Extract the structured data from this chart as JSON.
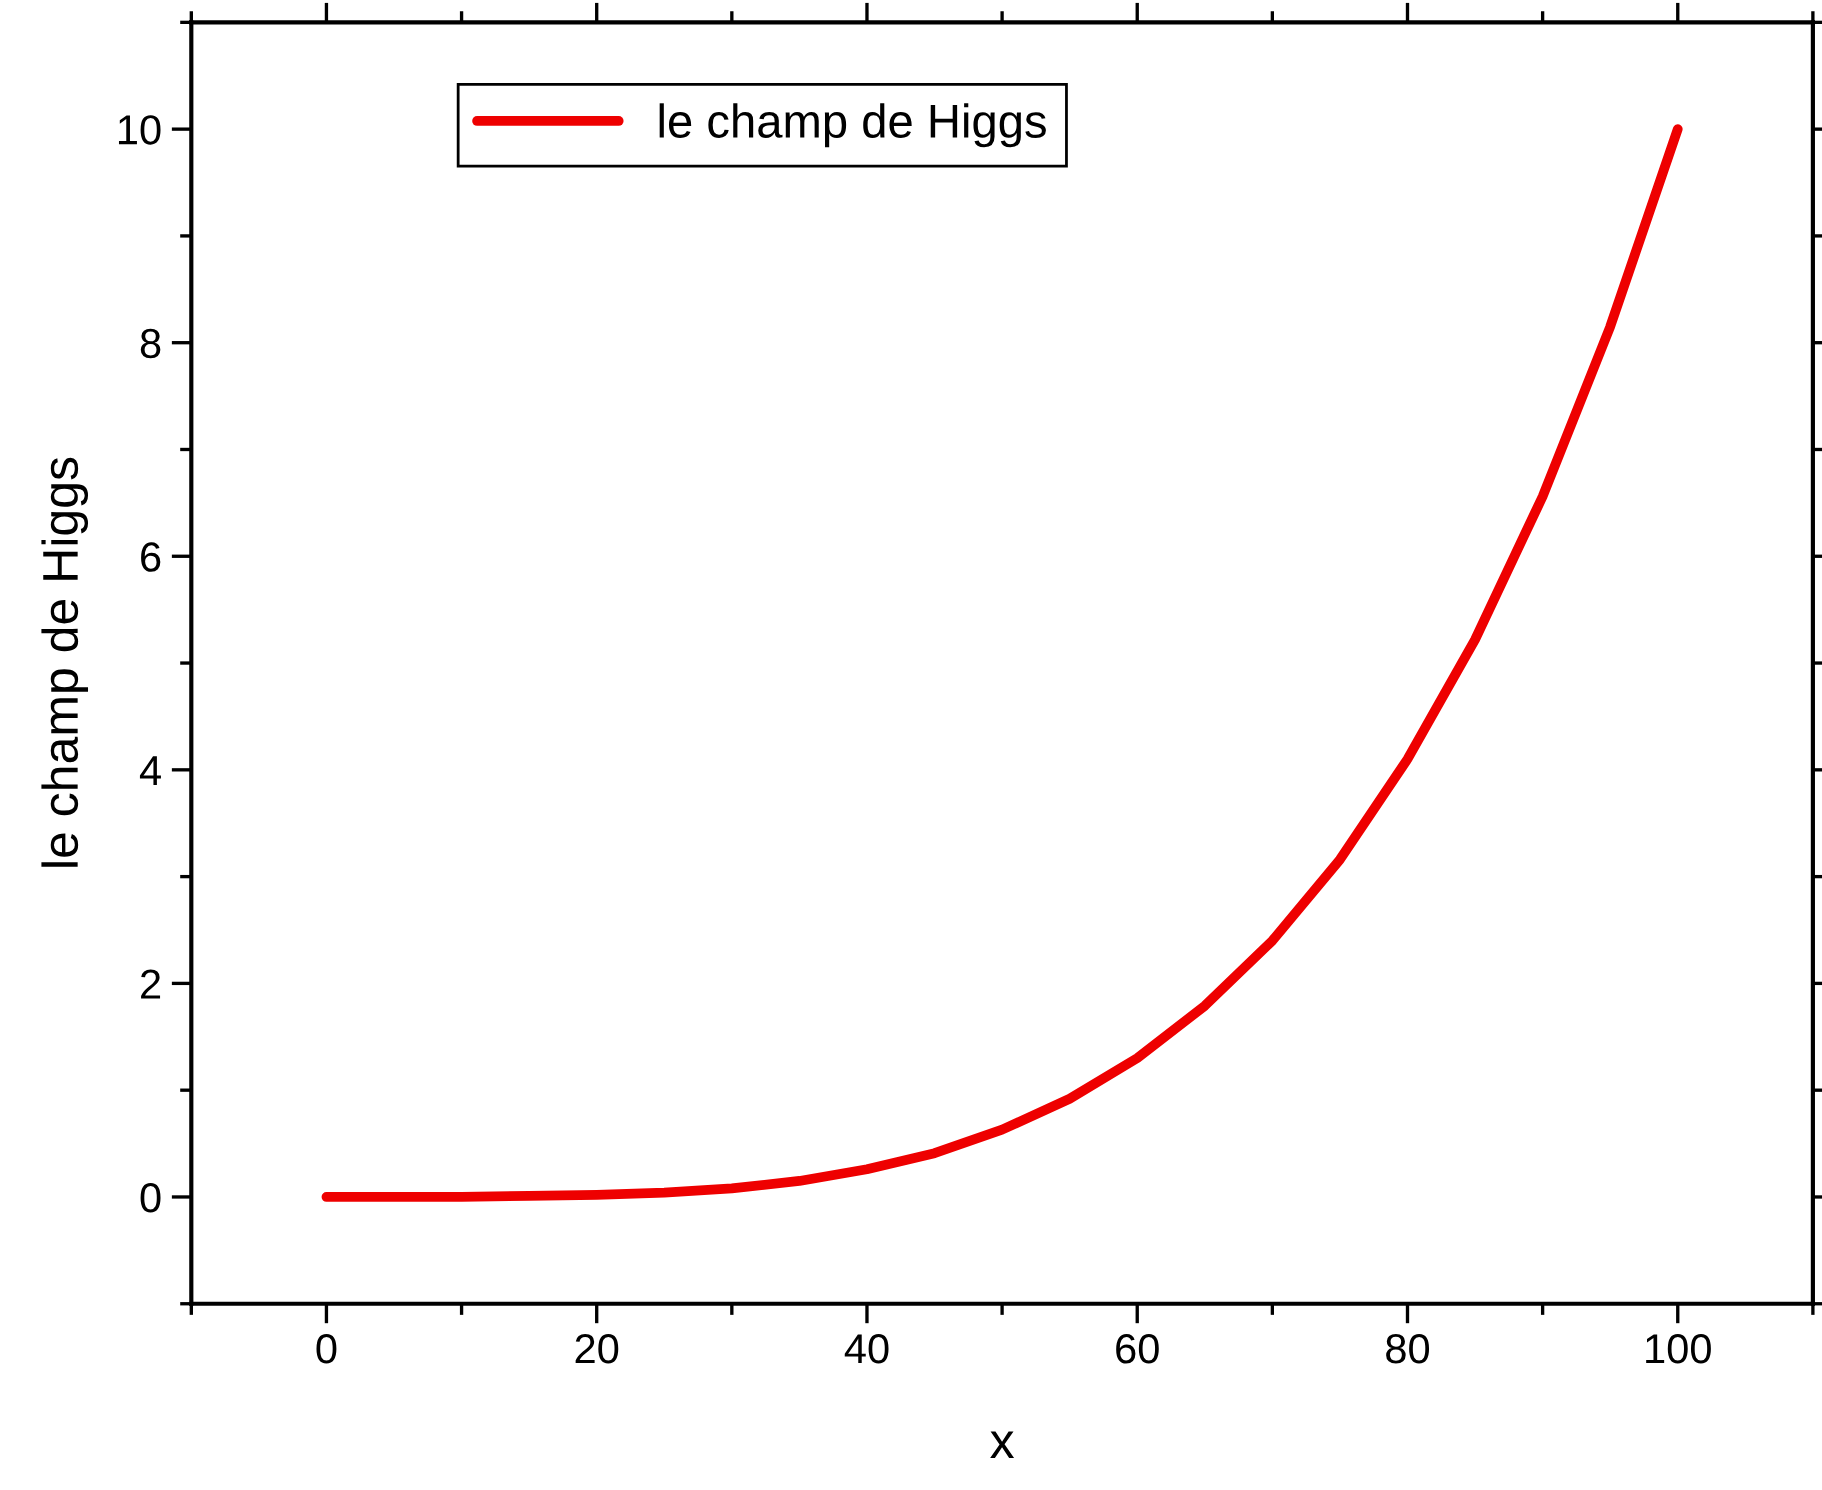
{
  "chart_data": {
    "type": "line",
    "xlabel": "x",
    "ylabel": "le champ de Higgs",
    "x": [
      0,
      5,
      10,
      15,
      20,
      25,
      30,
      35,
      40,
      45,
      50,
      55,
      60,
      65,
      70,
      75,
      80,
      85,
      90,
      95,
      100
    ],
    "series": [
      {
        "name": "le champ de Higgs",
        "color": "#ee0000",
        "values": [
          0,
          0,
          0,
          0.01,
          0.02,
          0.04,
          0.08,
          0.15,
          0.26,
          0.41,
          0.63,
          0.92,
          1.3,
          1.79,
          2.4,
          3.16,
          4.1,
          5.22,
          6.56,
          8.15,
          10
        ]
      }
    ],
    "xlim": [
      -10,
      110
    ],
    "xticks": [
      0,
      20,
      40,
      60,
      80,
      100
    ],
    "ylim": [
      -1,
      11
    ],
    "yticks": [
      0,
      2,
      4,
      6,
      8,
      10
    ],
    "grid": false,
    "legend": "top left",
    "marker": "none",
    "line_style": "solid"
  }
}
